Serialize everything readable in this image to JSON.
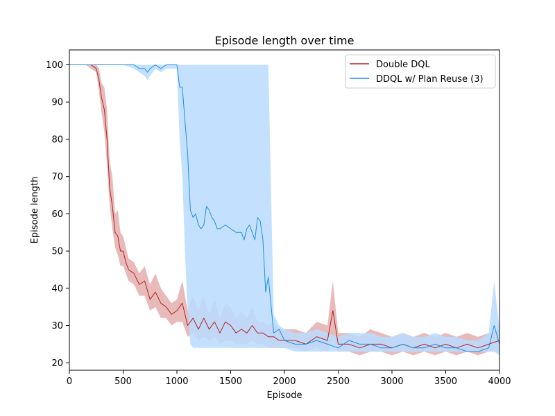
{
  "chart_data": {
    "type": "line",
    "title": "Episode length over time",
    "xlabel": "Episode",
    "ylabel": "Episode length",
    "xlim": [
      0,
      4000
    ],
    "ylim": [
      18,
      104
    ],
    "xticks": [
      0,
      500,
      1000,
      1500,
      2000,
      2500,
      3000,
      3500,
      4000
    ],
    "yticks": [
      20,
      30,
      40,
      50,
      60,
      70,
      80,
      90,
      100
    ],
    "grid": false,
    "legend_position": "top-right",
    "series": [
      {
        "name": "Double DQL",
        "color": "#b22222",
        "band_color": "#d98c8c",
        "x": [
          0,
          100,
          150,
          200,
          250,
          275,
          300,
          325,
          350,
          375,
          400,
          425,
          450,
          475,
          500,
          525,
          550,
          600,
          650,
          700,
          750,
          800,
          850,
          900,
          950,
          1000,
          1050,
          1100,
          1150,
          1200,
          1250,
          1300,
          1350,
          1400,
          1450,
          1500,
          1550,
          1600,
          1650,
          1700,
          1750,
          1800,
          1850,
          1900,
          1950,
          2000,
          2100,
          2200,
          2300,
          2400,
          2450,
          2500,
          2600,
          2700,
          2800,
          2900,
          3000,
          3100,
          3200,
          3300,
          3400,
          3500,
          3600,
          3700,
          3800,
          3900,
          4000
        ],
        "y": [
          100,
          100,
          100,
          100,
          99,
          96,
          91,
          88,
          80,
          67,
          62,
          55,
          54,
          50,
          50,
          47,
          45,
          44,
          41,
          42,
          37,
          39,
          36,
          35,
          33,
          34,
          36,
          30,
          32,
          29,
          32,
          29,
          31,
          28,
          31,
          30,
          28,
          29,
          28,
          30,
          28,
          28,
          27,
          27,
          26,
          26,
          26,
          25,
          27,
          26,
          34,
          25,
          25,
          24,
          25,
          25,
          24,
          25,
          24,
          25,
          24,
          25,
          24,
          25,
          24,
          25,
          26
        ],
        "lower": [
          100,
          100,
          100,
          99,
          98,
          93,
          87,
          82,
          73,
          62,
          56,
          51,
          49,
          46,
          46,
          44,
          42,
          41,
          38,
          38,
          34,
          35,
          32,
          32,
          30,
          31,
          31,
          27,
          28,
          26,
          27,
          26,
          27,
          25,
          26,
          26,
          25,
          25,
          25,
          26,
          25,
          25,
          24,
          24,
          24,
          24,
          24,
          23,
          24,
          23,
          26,
          23,
          23,
          22,
          23,
          23,
          22,
          23,
          22,
          23,
          22,
          23,
          22,
          23,
          22,
          23,
          23
        ],
        "upper": [
          100,
          100,
          100,
          100,
          100,
          99,
          95,
          94,
          88,
          74,
          70,
          60,
          61,
          55,
          54,
          51,
          48,
          47,
          44,
          46,
          41,
          44,
          40,
          38,
          36,
          37,
          42,
          34,
          38,
          34,
          38,
          33,
          37,
          32,
          36,
          35,
          32,
          34,
          32,
          35,
          31,
          31,
          30,
          31,
          29,
          29,
          29,
          28,
          31,
          30,
          42,
          28,
          28,
          27,
          29,
          28,
          27,
          28,
          27,
          28,
          27,
          28,
          27,
          28,
          27,
          28,
          29
        ]
      },
      {
        "name": "DDQL w/ Plan Reuse (3)",
        "color": "#1f8de0",
        "band_color": "#b9dcff",
        "x": [
          0,
          100,
          200,
          300,
          400,
          500,
          600,
          650,
          700,
          725,
          750,
          800,
          850,
          900,
          950,
          1000,
          1025,
          1050,
          1075,
          1100,
          1125,
          1150,
          1175,
          1200,
          1225,
          1250,
          1275,
          1300,
          1325,
          1350,
          1375,
          1400,
          1450,
          1500,
          1550,
          1600,
          1625,
          1650,
          1675,
          1700,
          1725,
          1750,
          1775,
          1800,
          1825,
          1850,
          1900,
          1950,
          2000,
          2100,
          2200,
          2300,
          2400,
          2500,
          2600,
          2700,
          2800,
          2900,
          3000,
          3100,
          3200,
          3300,
          3400,
          3500,
          3600,
          3700,
          3800,
          3900,
          3950,
          4000
        ],
        "y": [
          100,
          100,
          100,
          100,
          100,
          100,
          100,
          99,
          99,
          98,
          99,
          100,
          99,
          100,
          100,
          100,
          94,
          94,
          85,
          76,
          61,
          59,
          60,
          57,
          56,
          57,
          62,
          61,
          59,
          58,
          56,
          56,
          57,
          56,
          55,
          55,
          53,
          56,
          57,
          55,
          53,
          59,
          58,
          53,
          39,
          43,
          28,
          29,
          26,
          25,
          25,
          26,
          25,
          24,
          26,
          25,
          25,
          24,
          24,
          25,
          24,
          24,
          25,
          24,
          24,
          23,
          23,
          24,
          30,
          25
        ],
        "lower": [
          100,
          100,
          100,
          100,
          100,
          100,
          99,
          98,
          97,
          96,
          97,
          99,
          98,
          99,
          99,
          99,
          80,
          70,
          50,
          34,
          25,
          24,
          24,
          24,
          24,
          24,
          24,
          24,
          24,
          24,
          24,
          24,
          24,
          24,
          24,
          24,
          24,
          24,
          24,
          24,
          24,
          24,
          24,
          24,
          24,
          24,
          24,
          24,
          24,
          23,
          23,
          23,
          23,
          23,
          23,
          23,
          23,
          23,
          23,
          23,
          23,
          23,
          23,
          23,
          23,
          23,
          23,
          23,
          23,
          22
        ],
        "upper": [
          100,
          100,
          100,
          100,
          100,
          100,
          100,
          100,
          100,
          100,
          100,
          100,
          100,
          100,
          100,
          100,
          100,
          100,
          100,
          100,
          100,
          100,
          100,
          100,
          100,
          100,
          100,
          100,
          100,
          100,
          100,
          100,
          100,
          100,
          100,
          100,
          100,
          100,
          100,
          100,
          100,
          100,
          100,
          100,
          100,
          100,
          33,
          30,
          29,
          28,
          28,
          29,
          28,
          27,
          28,
          28,
          28,
          27,
          27,
          28,
          27,
          27,
          28,
          27,
          27,
          26,
          26,
          28,
          42,
          29
        ]
      }
    ]
  }
}
